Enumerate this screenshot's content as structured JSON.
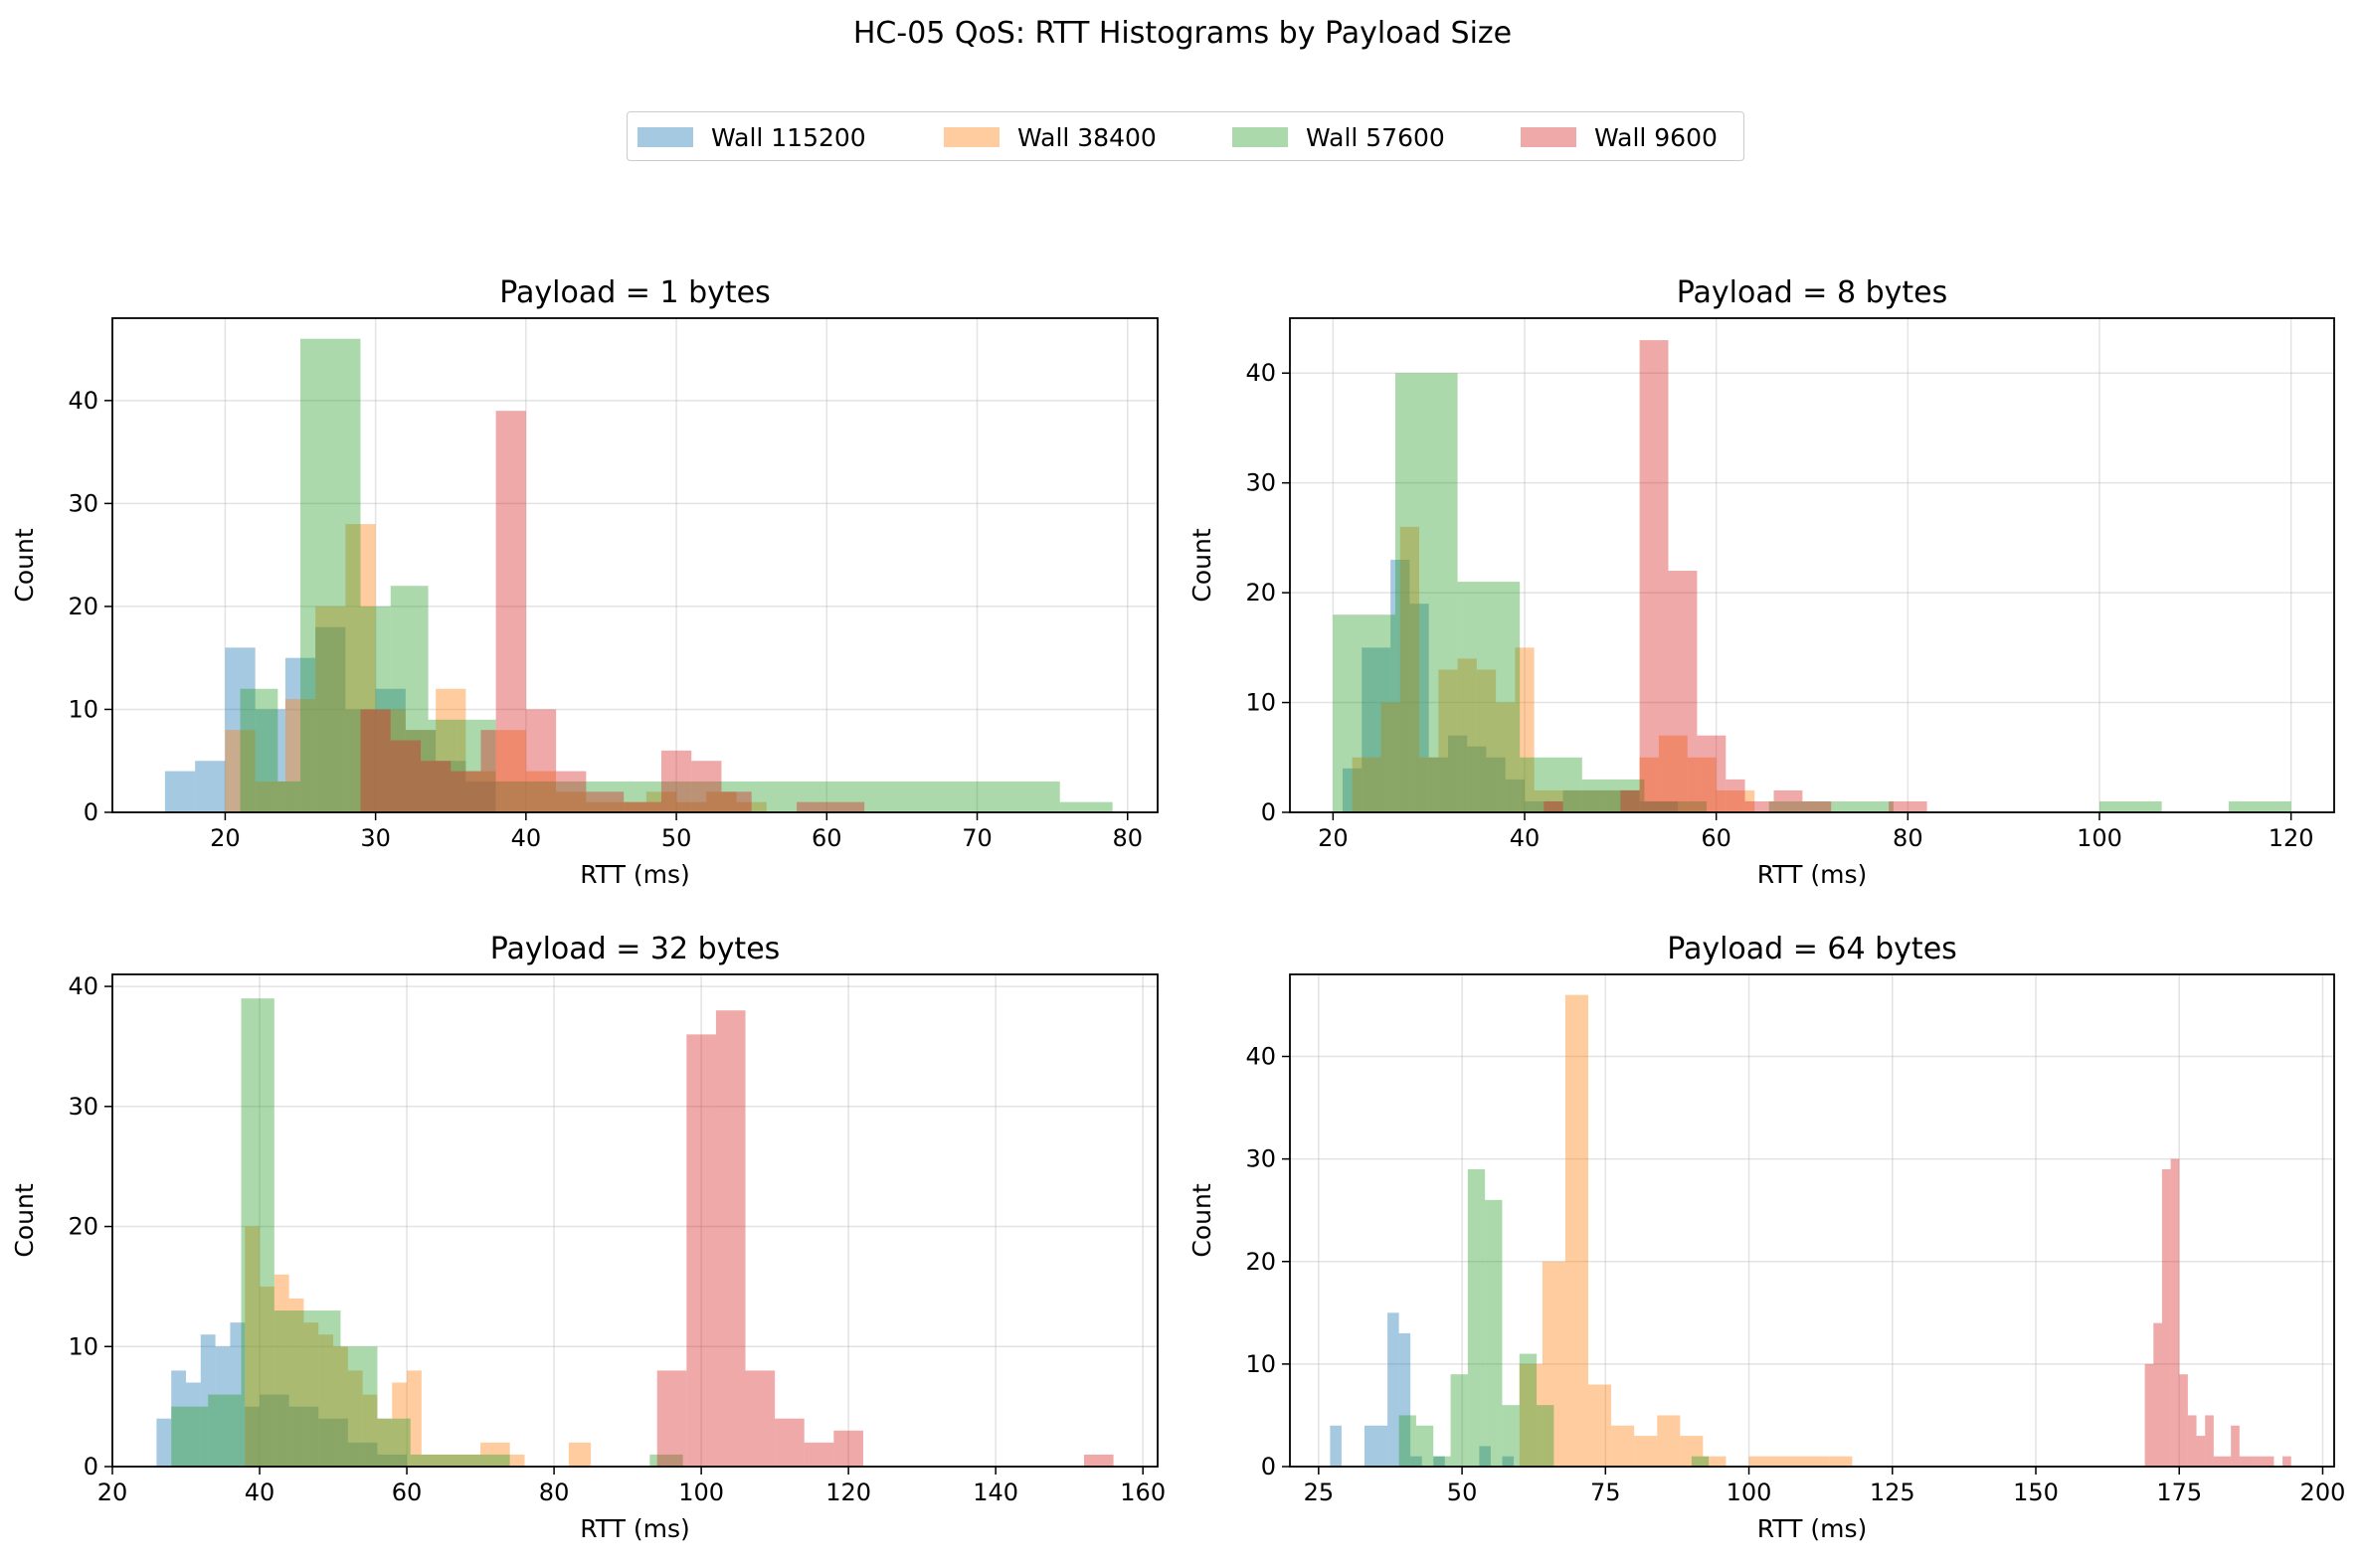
{
  "figure": {
    "suptitle": "HC-05 QoS: RTT Histograms by Payload Size"
  },
  "legend": {
    "placement": "top-center",
    "entries": [
      {
        "label": "Wall 115200",
        "color": "#1f77b4"
      },
      {
        "label": "Wall 38400",
        "color": "#ff7f0e"
      },
      {
        "label": "Wall 57600",
        "color": "#2ca02c"
      },
      {
        "label": "Wall 9600",
        "color": "#d62728"
      }
    ]
  },
  "chart_data": [
    {
      "type": "histogram",
      "title": "Payload = 1 bytes",
      "xlabel": "RTT (ms)",
      "ylabel": "Count",
      "xlim": [
        12.5,
        82
      ],
      "ylim": [
        0,
        48
      ],
      "xticks": [
        20,
        30,
        40,
        50,
        60,
        70,
        80
      ],
      "yticks": [
        0,
        10,
        20,
        30,
        40
      ],
      "grid": true,
      "series": [
        {
          "name": "Wall 115200",
          "color": "#1f77b4",
          "edges": [
            16,
            18,
            20,
            22,
            24,
            26,
            28,
            30,
            32,
            34,
            36,
            38
          ],
          "counts": [
            4,
            5,
            16,
            10,
            15,
            18,
            10,
            12,
            8,
            5,
            3
          ]
        },
        {
          "name": "Wall 38400",
          "color": "#ff7f0e",
          "edges": [
            20,
            22,
            24,
            26,
            28,
            30,
            32,
            34,
            36,
            38,
            40,
            42,
            44,
            46,
            48,
            50,
            52,
            54,
            56
          ],
          "counts": [
            8,
            3,
            11,
            20,
            28,
            10,
            8,
            12,
            4,
            8,
            4,
            2,
            1,
            1,
            2,
            1,
            2,
            1
          ]
        },
        {
          "name": "Wall 57600",
          "color": "#2ca02c",
          "edges": [
            21,
            23.5,
            25,
            29,
            31,
            33.5,
            35.5,
            38,
            75.5,
            79
          ],
          "counts": [
            12,
            3,
            46,
            20,
            22,
            9,
            9,
            3,
            1
          ]
        },
        {
          "name": "Wall 9600",
          "color": "#d62728",
          "edges": [
            29,
            31,
            33,
            35,
            37,
            38,
            40,
            42,
            44,
            46.5,
            49,
            51,
            53,
            55,
            58,
            62.5
          ],
          "counts": [
            10,
            7,
            5,
            4,
            8,
            39,
            10,
            4,
            2,
            1,
            6,
            5,
            2,
            0,
            1
          ]
        }
      ]
    },
    {
      "type": "histogram",
      "title": "Payload = 8 bytes",
      "xlabel": "RTT (ms)",
      "ylabel": "Count",
      "xlim": [
        15.5,
        124.5
      ],
      "ylim": [
        0,
        45
      ],
      "xticks": [
        20,
        40,
        60,
        80,
        100,
        120
      ],
      "yticks": [
        0,
        10,
        20,
        30,
        40
      ],
      "grid": true,
      "series": [
        {
          "name": "Wall 115200",
          "color": "#1f77b4",
          "edges": [
            21,
            23,
            26,
            28,
            30,
            32,
            34,
            36,
            38,
            40,
            44,
            48,
            52,
            56
          ],
          "counts": [
            4,
            15,
            23,
            19,
            5,
            7,
            6,
            5,
            3,
            1,
            2,
            2,
            1
          ]
        },
        {
          "name": "Wall 38400",
          "color": "#ff7f0e",
          "edges": [
            22,
            25,
            27,
            29,
            31,
            33,
            35,
            37,
            39,
            41,
            50,
            52,
            54,
            57,
            60,
            62,
            64
          ],
          "counts": [
            5,
            10,
            26,
            5,
            13,
            14,
            13,
            10,
            15,
            2,
            2,
            5,
            7,
            5,
            2,
            2
          ]
        },
        {
          "name": "Wall 57600",
          "color": "#2ca02c",
          "edges": [
            20,
            26.5,
            33,
            39.5,
            46,
            52.5,
            59,
            65.5,
            72,
            78.5,
            100,
            106.5,
            113.5,
            120
          ],
          "counts": [
            18,
            40,
            21,
            5,
            3,
            1,
            0,
            1,
            1,
            0,
            1,
            0,
            1
          ]
        },
        {
          "name": "Wall 9600",
          "color": "#d62728",
          "edges": [
            42,
            44,
            46,
            48,
            50,
            52,
            55,
            58,
            61,
            63,
            66,
            69,
            72,
            75,
            78,
            80,
            82
          ],
          "counts": [
            1,
            0,
            0,
            0,
            2,
            43,
            22,
            7,
            3,
            1,
            2,
            1,
            0,
            0,
            1,
            1
          ]
        }
      ]
    },
    {
      "type": "histogram",
      "title": "Payload = 32 bytes",
      "xlabel": "RTT (ms)",
      "ylabel": "Count",
      "xlim": [
        20,
        162
      ],
      "ylim": [
        0,
        41
      ],
      "xticks": [
        20,
        40,
        60,
        80,
        100,
        120,
        140,
        160
      ],
      "yticks": [
        0,
        10,
        20,
        30,
        40
      ],
      "grid": true,
      "series": [
        {
          "name": "Wall 115200",
          "color": "#1f77b4",
          "edges": [
            26,
            28,
            30,
            32,
            34,
            36,
            38,
            40,
            44,
            48,
            52,
            56,
            60
          ],
          "counts": [
            4,
            8,
            7,
            11,
            10,
            12,
            5,
            6,
            5,
            4,
            2,
            1
          ]
        },
        {
          "name": "Wall 38400",
          "color": "#ff7f0e",
          "edges": [
            38,
            40,
            42,
            44,
            46,
            48,
            50,
            52,
            54,
            56,
            58,
            60,
            62,
            70,
            74,
            76,
            78,
            82,
            85
          ],
          "counts": [
            20,
            15,
            16,
            14,
            12,
            11,
            10,
            8,
            6,
            4,
            7,
            8,
            1,
            2,
            1,
            0,
            0,
            2
          ]
        },
        {
          "name": "Wall 57600",
          "color": "#2ca02c",
          "edges": [
            28,
            33,
            37.5,
            42,
            46.5,
            51,
            56,
            60.5,
            65,
            69.5,
            74,
            93,
            97.5
          ],
          "counts": [
            5,
            6,
            39,
            13,
            13,
            10,
            4,
            1,
            1,
            1,
            0,
            1
          ]
        },
        {
          "name": "Wall 9600",
          "color": "#d62728",
          "edges": [
            94,
            98,
            102,
            106,
            110,
            114,
            118,
            122,
            152,
            156
          ],
          "counts": [
            8,
            36,
            38,
            8,
            4,
            2,
            3,
            0,
            1
          ]
        }
      ]
    },
    {
      "type": "histogram",
      "title": "Payload = 64 bytes",
      "xlabel": "RTT (ms)",
      "ylabel": "Count",
      "xlim": [
        20,
        202
      ],
      "ylim": [
        0,
        48
      ],
      "xticks": [
        25,
        50,
        75,
        100,
        125,
        150,
        175,
        200
      ],
      "yticks": [
        0,
        10,
        20,
        30,
        40
      ],
      "grid": true,
      "series": [
        {
          "name": "Wall 115200",
          "color": "#1f77b4",
          "edges": [
            27,
            29,
            31,
            33,
            35,
            37,
            39,
            41,
            43,
            45,
            47,
            49,
            51,
            53,
            55,
            57,
            59
          ],
          "counts": [
            4,
            0,
            0,
            4,
            4,
            15,
            13,
            1,
            0,
            1,
            0,
            0,
            0,
            2,
            0,
            1
          ]
        },
        {
          "name": "Wall 38400",
          "color": "#ff7f0e",
          "edges": [
            60,
            64,
            68,
            72,
            76,
            80,
            84,
            88,
            92,
            96,
            100,
            114,
            118
          ],
          "counts": [
            10,
            20,
            46,
            8,
            4,
            3,
            5,
            3,
            1,
            0,
            1,
            1
          ]
        },
        {
          "name": "Wall 57600",
          "color": "#2ca02c",
          "edges": [
            39,
            42,
            45,
            48,
            51,
            54,
            57,
            60,
            63,
            66,
            69,
            72,
            75,
            78,
            81,
            84,
            87,
            90,
            93
          ],
          "counts": [
            5,
            4,
            1,
            9,
            29,
            26,
            6,
            11,
            6,
            0,
            0,
            0,
            0,
            0,
            0,
            0,
            0,
            1
          ]
        },
        {
          "name": "Wall 9600",
          "color": "#d62728",
          "edges": [
            169,
            170.5,
            172,
            173.5,
            175,
            176.5,
            178,
            179.5,
            181,
            182.5,
            184,
            185.5,
            187,
            188.5,
            190,
            191.5,
            193,
            194.5
          ],
          "counts": [
            10,
            14,
            29,
            30,
            9,
            5,
            3,
            5,
            1,
            1,
            4,
            1,
            1,
            1,
            1,
            0,
            1
          ]
        }
      ]
    }
  ]
}
